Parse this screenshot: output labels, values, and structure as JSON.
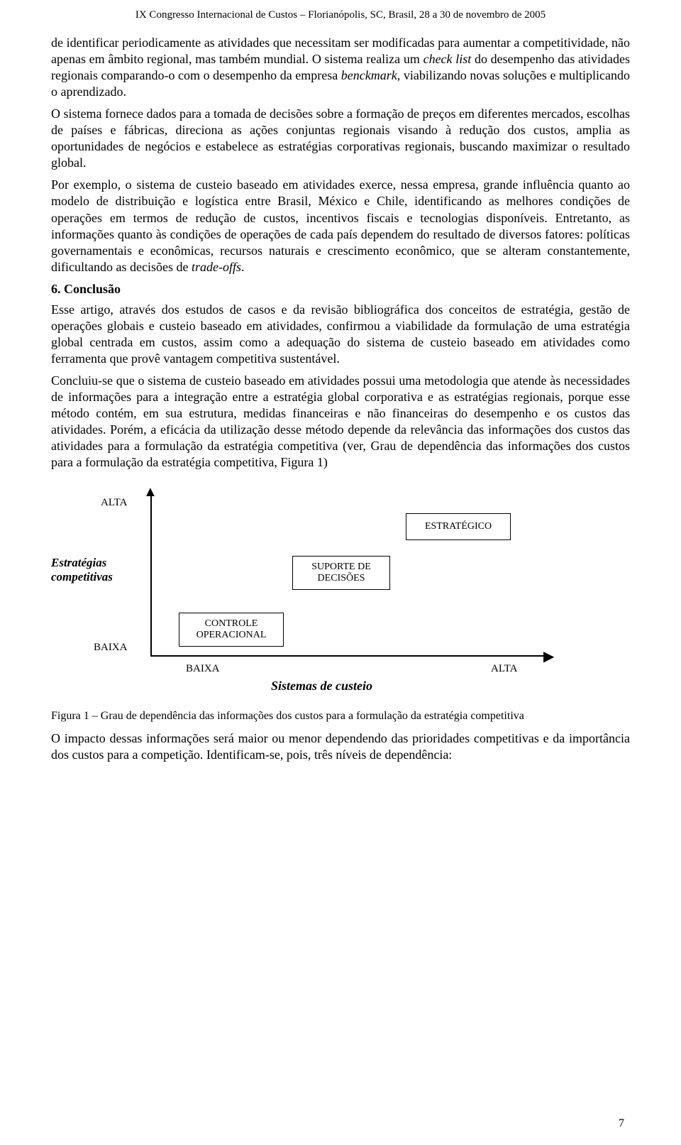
{
  "header": "IX Congresso Internacional de Custos – Florianópolis, SC, Brasil, 28 a 30 de novembro de 2005",
  "paragraphs": {
    "p1_a": "de identificar periodicamente as atividades que necessitam ser modificadas para aumentar a competitividade, não apenas em âmbito regional, mas também mundial. O sistema realiza um ",
    "p1_b": "check list",
    "p1_c": " do desempenho das atividades regionais comparando-o com o desempenho da empresa ",
    "p1_d": "benckmark",
    "p1_e": ", viabilizando novas soluções e multiplicando o aprendizado.",
    "p2": "O sistema fornece dados para a tomada de decisões sobre a formação de preços em diferentes mercados, escolhas de países e fábricas, direciona as ações conjuntas regionais visando à redução dos custos, amplia as oportunidades de negócios e estabelece as estratégias corporativas regionais, buscando maximizar o resultado global.",
    "p3_a": "Por exemplo, o sistema de custeio baseado em atividades exerce, nessa empresa, grande influência quanto ao modelo de distribuição e logística entre Brasil, México e Chile, identificando as melhores condições de operações em termos de redução de custos, incentivos fiscais e tecnologias disponíveis. Entretanto, as informações quanto às condições de operações de cada país dependem do resultado de diversos fatores: políticas governamentais e econômicas, recursos naturais e crescimento econômico, que se alteram constantemente, dificultando as decisões de ",
    "p3_b": "trade-offs",
    "p3_c": "."
  },
  "section_heading": "6. Conclusão",
  "conclusion": {
    "c1": "Esse artigo, através dos estudos de casos e da revisão bibliográfica dos conceitos de estratégia, gestão de operações globais e custeio baseado em atividades, confirmou a viabilidade da formulação de uma estratégia global centrada em custos, assim como a adequação do sistema de custeio baseado em atividades como ferramenta que provê vantagem competitiva sustentável.",
    "c2": "Concluiu-se que o sistema de custeio baseado em atividades possui uma metodologia que atende às necessidades de informações para a integração entre a estratégia global corporativa e as estratégias regionais, porque esse método contém, em sua estrutura, medidas financeiras e não financeiras do desempenho e os custos das atividades. Porém, a eficácia da utilização desse método depende da relevância das informações dos custos das atividades para a formulação da estratégia competitiva (ver, Grau de dependência das informações dos custos para a formulação da estratégia competitiva, Figura 1)"
  },
  "diagram": {
    "y_axis_label_top": "ALTA",
    "y_axis_label_bottom": "BAIXA",
    "y_axis_title_line1": "Estratégias",
    "y_axis_title_line2": "competitivas",
    "x_axis_label_left": "BAIXA",
    "x_axis_label_right": "ALTA",
    "x_axis_title": "Sistemas de custeio",
    "box_strategic": "ESTRATÉGICO",
    "box_support_line1": "SUPORTE DE",
    "box_support_line2": "DECISÕES",
    "box_control_line1": "CONTROLE",
    "box_control_line2": "OPERACIONAL",
    "border_color": "#000000",
    "background_color": "#ffffff"
  },
  "figure_caption": "Figura 1 – Grau de dependência das informações dos custos para a formulação da estratégia competitiva",
  "closing_paragraph": "O impacto dessas informações será maior ou menor dependendo das prioridades competitivas e da importância dos custos para a competição. Identificam-se, pois, três níveis de dependência:",
  "page_number": "7"
}
